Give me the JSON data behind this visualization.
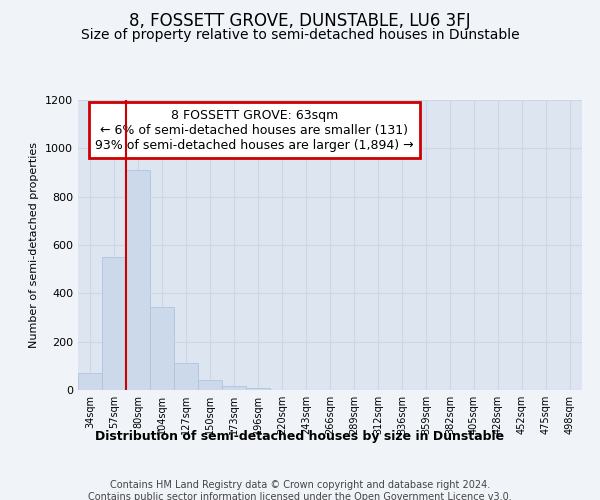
{
  "title": "8, FOSSETT GROVE, DUNSTABLE, LU6 3FJ",
  "subtitle": "Size of property relative to semi-detached houses in Dunstable",
  "xlabel": "Distribution of semi-detached houses by size in Dunstable",
  "ylabel": "Number of semi-detached properties",
  "bar_labels": [
    "34sqm",
    "57sqm",
    "80sqm",
    "104sqm",
    "127sqm",
    "150sqm",
    "173sqm",
    "196sqm",
    "220sqm",
    "243sqm",
    "266sqm",
    "289sqm",
    "312sqm",
    "336sqm",
    "359sqm",
    "382sqm",
    "405sqm",
    "428sqm",
    "452sqm",
    "475sqm",
    "498sqm"
  ],
  "bar_values": [
    70,
    550,
    910,
    345,
    110,
    40,
    15,
    10,
    0,
    0,
    0,
    0,
    0,
    0,
    0,
    0,
    0,
    0,
    0,
    0,
    0
  ],
  "bar_color": "#ccd9ea",
  "bar_edge_color": "#b0c4de",
  "grid_color": "#ccd6e8",
  "bg_color": "#dde6f0",
  "fig_bg_color": "#f0f4f8",
  "vline_x": 1.5,
  "vline_color": "#cc0000",
  "ylim": [
    0,
    1200
  ],
  "yticks": [
    0,
    200,
    400,
    600,
    800,
    1000,
    1200
  ],
  "annotation_text": "8 FOSSETT GROVE: 63sqm\n← 6% of semi-detached houses are smaller (131)\n93% of semi-detached houses are larger (1,894) →",
  "annotation_box_color": "#cc0000",
  "footer": "Contains HM Land Registry data © Crown copyright and database right 2024.\nContains public sector information licensed under the Open Government Licence v3.0.",
  "title_fontsize": 12,
  "subtitle_fontsize": 10,
  "footer_fontsize": 7,
  "annotation_fontsize": 9
}
